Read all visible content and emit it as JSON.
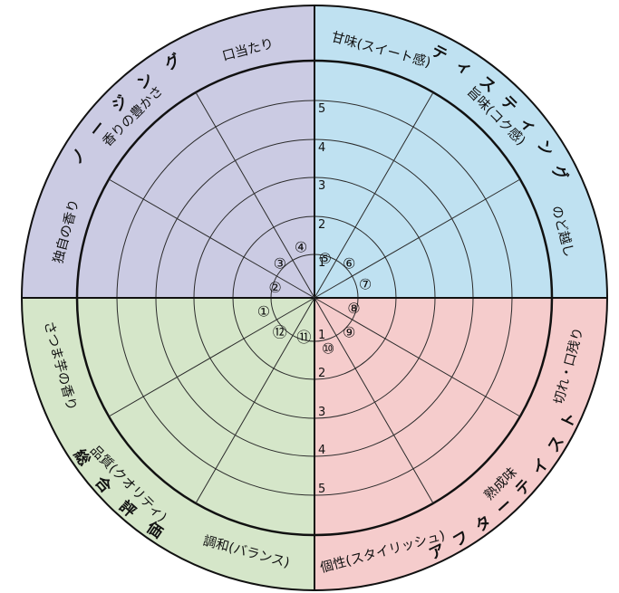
{
  "categories": [
    {
      "id": "nosing",
      "label": "ノージング",
      "color": "#cbcbe3"
    },
    {
      "id": "tasting",
      "label": "ティスティング",
      "color": "#bfe1f1"
    },
    {
      "id": "aftertaste",
      "label": "アフターテイスト",
      "color": "#f5cccc"
    },
    {
      "id": "overall",
      "label": "総合評価",
      "color": "#d5e6c9"
    }
  ],
  "items": [
    {
      "no": "①",
      "label": "さつま芋の香り"
    },
    {
      "no": "②",
      "label": "独自の香り"
    },
    {
      "no": "③",
      "label": "香りの豊かさ"
    },
    {
      "no": "④",
      "label": "口当たり"
    },
    {
      "no": "⑤",
      "label": "甘味(スイート感)"
    },
    {
      "no": "⑥",
      "label": "旨味(コク感)"
    },
    {
      "no": "⑦",
      "label": "のど越し"
    },
    {
      "no": "⑧",
      "label": "切れ・口残り"
    },
    {
      "no": "⑨",
      "label": "熟成味"
    },
    {
      "no": "⑩",
      "label": "個性(スタイリッシュ)"
    },
    {
      "no": "⑪",
      "label": "調和(バランス)"
    },
    {
      "no": "⑫",
      "label": "品質(クオリティ)"
    }
  ],
  "scale_upper": [
    "1",
    "2",
    "3",
    "4",
    "5"
  ],
  "scale_lower": [
    "1",
    "2",
    "3",
    "4",
    "5"
  ]
}
